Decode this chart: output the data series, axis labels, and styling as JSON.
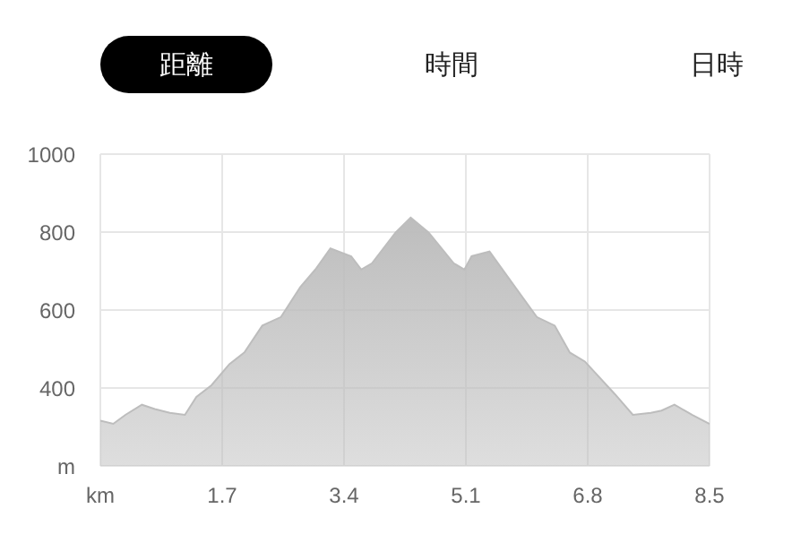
{
  "chart_data": {
    "type": "area",
    "annotations": [
      "距離",
      "時間",
      "日時"
    ],
    "x": [
      0,
      0.18,
      0.35,
      0.58,
      0.76,
      0.97,
      1.18,
      1.34,
      1.55,
      1.8,
      2.01,
      2.26,
      2.52,
      2.79,
      3.0,
      3.21,
      3.5,
      3.64,
      3.79,
      4.12,
      4.33,
      4.58,
      4.93,
      5.08,
      5.18,
      5.43,
      5.76,
      6.09,
      6.34,
      6.55,
      6.76,
      7.18,
      7.43,
      7.68,
      7.83,
      8.01,
      8.26,
      8.5
    ],
    "series": [
      {
        "color": "#bdbdbd",
        "values": [
          316,
          308,
          331,
          357,
          346,
          336,
          331,
          377,
          407,
          461,
          491,
          560,
          582,
          659,
          704,
          758,
          738,
          704,
          720,
          799,
          837,
          799,
          720,
          704,
          738,
          750,
          666,
          582,
          560,
          491,
          468,
          384,
          331,
          336,
          342,
          357,
          331,
          308
        ]
      }
    ],
    "xlim": [
      0,
      8.5
    ],
    "xticks": [
      {
        "value": 0,
        "label": "km"
      },
      1.7,
      3.4,
      5.1,
      6.8,
      8.5
    ],
    "ylim": [
      200,
      1000
    ],
    "yticks": [
      {
        "value": 200,
        "label": "m"
      },
      400,
      600,
      800,
      1000
    ],
    "grid": true,
    "legend": false
  }
}
